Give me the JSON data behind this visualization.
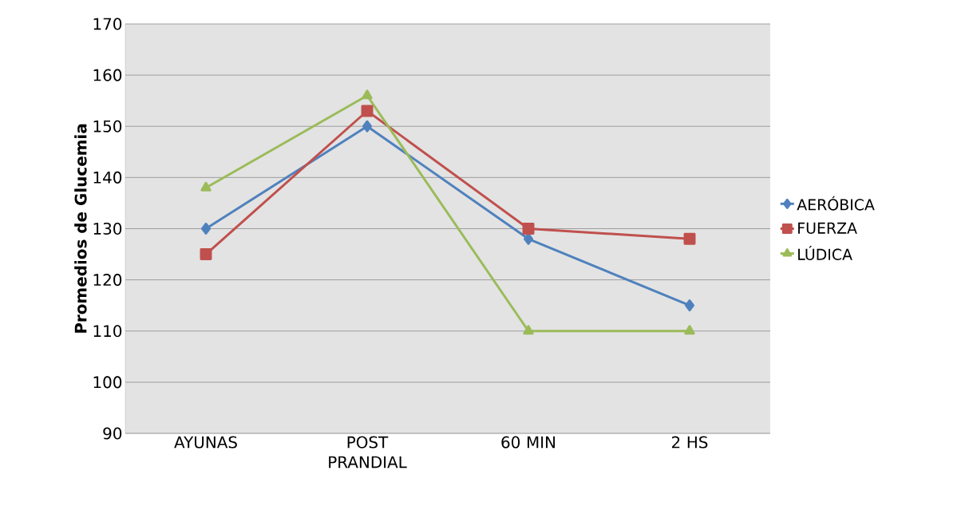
{
  "chart_data": {
    "type": "line",
    "ylabel": "**Promedios de Glucemia**",
    "categories": [
      "AYUNAS",
      "POST PRANDIAL",
      "60 MIN",
      "2 HS"
    ],
    "series": [
      {
        "name": "AERÓBICA",
        "color": "#4f81bd",
        "marker": "diamond",
        "values": [
          130,
          150,
          128,
          115
        ]
      },
      {
        "name": "FUERZA",
        "color": "#c0504d",
        "marker": "square",
        "values": [
          125,
          153,
          130,
          128
        ]
      },
      {
        "name": "LÚDICA",
        "color": "#9bbb59",
        "marker": "triangle",
        "values": [
          138,
          156,
          110,
          110
        ]
      }
    ],
    "ylim": [
      90,
      170
    ],
    "yticks": [
      90,
      100,
      110,
      120,
      130,
      140,
      150,
      160,
      170
    ],
    "grid": "y",
    "legend": "right"
  }
}
